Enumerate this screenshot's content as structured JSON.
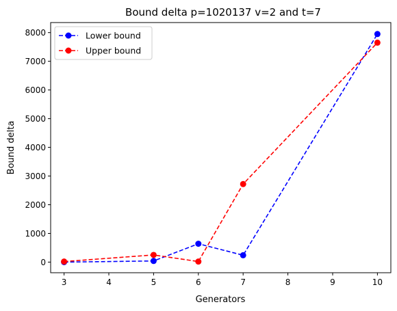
{
  "chart_data": {
    "type": "line",
    "title": "Bound delta p=1020137 v=2 and t=7",
    "xlabel": "Generators",
    "ylabel": "Bound delta",
    "xlim": [
      2.7,
      10.3
    ],
    "ylim": [
      -370,
      8350
    ],
    "xticks": [
      3,
      4,
      5,
      6,
      7,
      8,
      9,
      10
    ],
    "yticks": [
      0,
      1000,
      2000,
      3000,
      4000,
      5000,
      6000,
      7000,
      8000
    ],
    "grid": false,
    "legend_position": "upper left",
    "series": [
      {
        "name": "Lower bound",
        "color": "#0000ff",
        "linestyle": "dashed",
        "marker": "circle",
        "x": [
          3,
          5,
          6,
          7,
          10
        ],
        "y": [
          0,
          40,
          640,
          240,
          7950
        ]
      },
      {
        "name": "Upper bound",
        "color": "#ff0000",
        "linestyle": "dashed",
        "marker": "circle",
        "x": [
          3,
          5,
          6,
          7,
          10
        ],
        "y": [
          20,
          250,
          20,
          2720,
          7650
        ]
      }
    ]
  }
}
